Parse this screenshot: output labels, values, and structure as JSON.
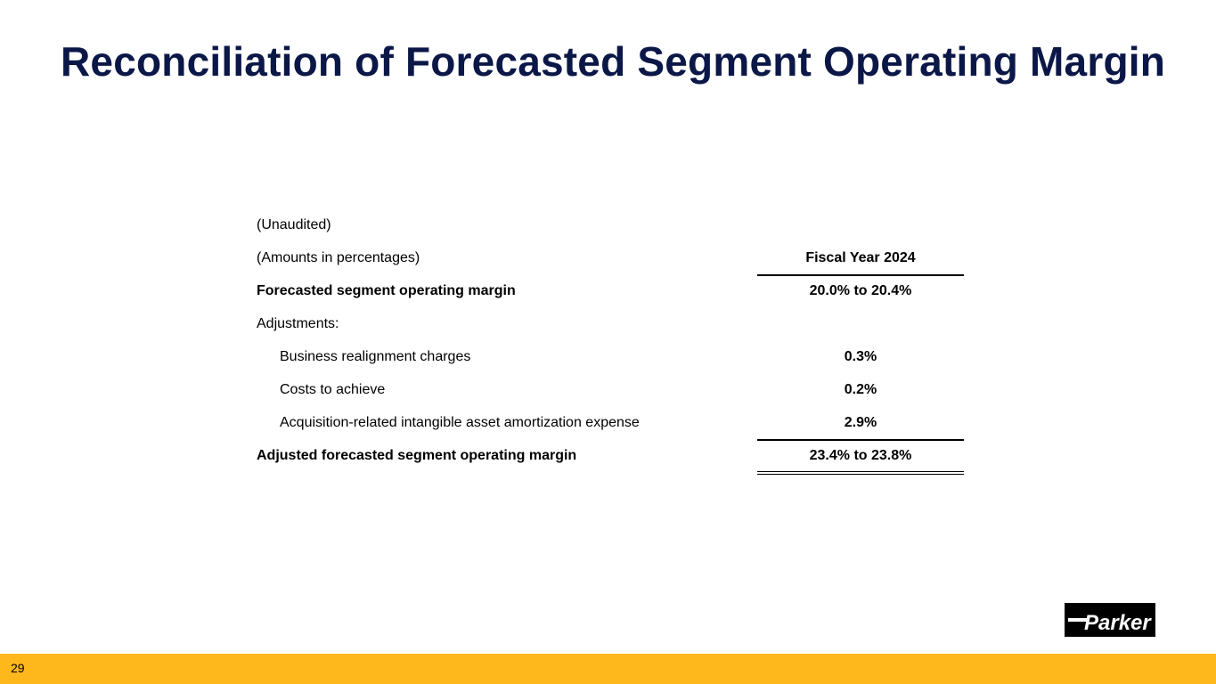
{
  "slide": {
    "title": "Reconciliation of Forecasted Segment Operating Margin",
    "page_number": "29"
  },
  "table": {
    "note_unaudited": "(Unaudited)",
    "note_units": "(Amounts in percentages)",
    "column_header": "Fiscal Year 2024",
    "rows": [
      {
        "label": "Forecasted segment operating margin",
        "value": "20.0% to 20.4%"
      },
      {
        "label": "Adjustments:",
        "value": ""
      },
      {
        "label": "Business realignment charges",
        "value": "0.3%"
      },
      {
        "label": "Costs to achieve",
        "value": "0.2%"
      },
      {
        "label": "Acquisition-related intangible asset amortization expense",
        "value": "2.9%"
      },
      {
        "label": "Adjusted forecasted segment operating margin",
        "value": "23.4% to 23.8%"
      }
    ]
  },
  "logo": {
    "text": "Parker",
    "icon": "parker-logo-icon"
  },
  "colors": {
    "title": "#0b1747",
    "footer_bar": "#ffb81c",
    "logo_background": "#000000",
    "logo_foreground": "#ffffff"
  }
}
